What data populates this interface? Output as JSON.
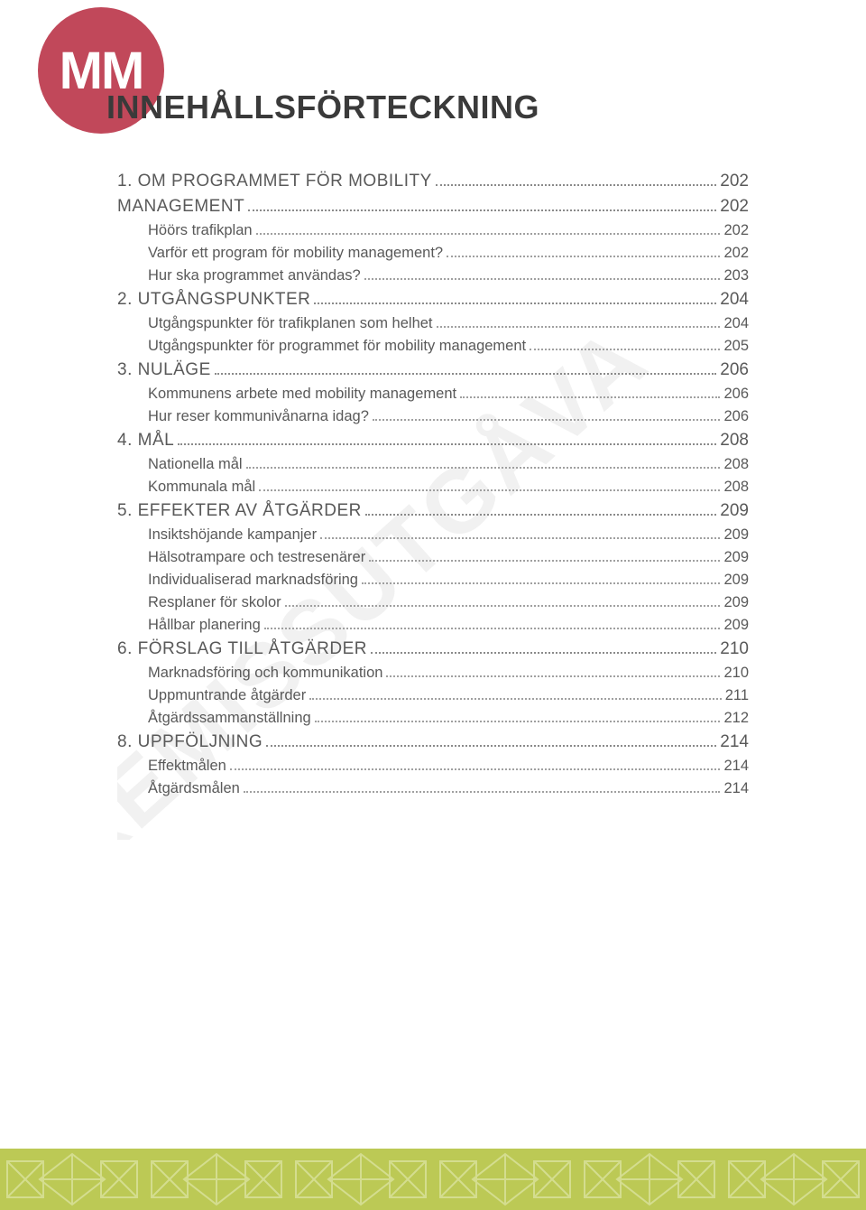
{
  "logo": {
    "text": "MM",
    "bg": "#c1485a",
    "fg": "#ffffff"
  },
  "title": "INNEHÅLLSFÖRTECKNING",
  "watermark": "REMISSUTGÅVA",
  "colors": {
    "text": "#595959",
    "dots": "#8a8a8a",
    "footer_bg": "#bcc955",
    "footer_line": "#d4dd8f",
    "watermark": "#f1f1f1"
  },
  "toc": [
    {
      "type": "section",
      "label": "1. OM PROGRAMMET FÖR MOBILITY ",
      "page": " 202"
    },
    {
      "type": "section",
      "label": "MANAGEMENT",
      "page": " 202"
    },
    {
      "type": "sub",
      "label": "Höörs trafikplan",
      "page": "202"
    },
    {
      "type": "sub",
      "label": "Varför ett program för mobility management?",
      "page": "202"
    },
    {
      "type": "sub",
      "label": "Hur ska programmet användas?",
      "page": "203"
    },
    {
      "type": "section",
      "label": "2. UTGÅNGSPUNKTER",
      "page": " 204"
    },
    {
      "type": "sub",
      "label": "Utgångspunkter för trafikplanen som helhet",
      "page": "204"
    },
    {
      "type": "sub",
      "label": "Utgångspunkter för programmet för mobility management",
      "page": "205"
    },
    {
      "type": "section",
      "label": "3. NULÄGE",
      "page": " 206"
    },
    {
      "type": "sub",
      "label": "Kommunens arbete med mobility management",
      "page": "206"
    },
    {
      "type": "sub",
      "label": "Hur reser kommunivånarna idag?",
      "page": "206"
    },
    {
      "type": "section",
      "label": "4. MÅL",
      "page": " 208"
    },
    {
      "type": "sub",
      "label": "Nationella mål",
      "page": "208"
    },
    {
      "type": "sub",
      "label": "Kommunala mål",
      "page": "208"
    },
    {
      "type": "section",
      "label": "5. EFFEKTER AV ÅTGÄRDER",
      "page": " 209"
    },
    {
      "type": "sub",
      "label": "Insiktshöjande kampanjer",
      "page": "209"
    },
    {
      "type": "sub",
      "label": "Hälsotrampare och testresenärer",
      "page": "209"
    },
    {
      "type": "sub",
      "label": "Individualiserad  marknadsföring",
      "page": "209"
    },
    {
      "type": "sub",
      "label": "Resplaner för skolor",
      "page": "209"
    },
    {
      "type": "sub",
      "label": "Hållbar planering",
      "page": "209"
    },
    {
      "type": "section",
      "label": "6. FÖRSLAG TILL ÅTGÄRDER",
      "page": " 210"
    },
    {
      "type": "sub",
      "label": "Marknadsföring och kommunikation",
      "page": "210"
    },
    {
      "type": "sub",
      "label": "Uppmuntrande åtgärder",
      "page": "211"
    },
    {
      "type": "sub",
      "label": "Åtgärdssammanställning",
      "page": "212"
    },
    {
      "type": "section",
      "label": "8. UPPFÖLJNING",
      "page": "214"
    },
    {
      "type": "sub",
      "label": "Effektmålen",
      "page": "214"
    },
    {
      "type": "sub",
      "label": "Åtgärdsmålen",
      "page": "214"
    }
  ]
}
